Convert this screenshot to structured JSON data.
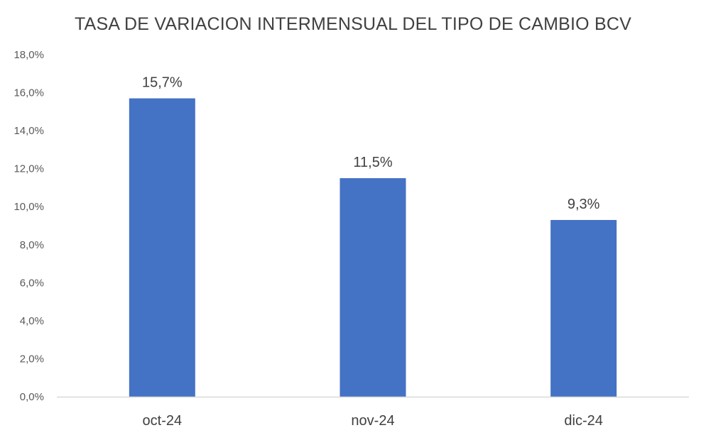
{
  "chart_data": {
    "type": "bar",
    "title": "TASA DE VARIACION INTERMENSUAL DEL TIPO DE CAMBIO BCV",
    "xlabel": "",
    "ylabel": "",
    "categories": [
      "oct-24",
      "nov-24",
      "dic-24"
    ],
    "values": [
      15.7,
      11.5,
      9.3
    ],
    "data_labels": [
      "15,7%",
      "11,5%",
      "9,3%"
    ],
    "ylim": [
      0,
      18
    ],
    "y_ticks": [
      0,
      2,
      4,
      6,
      8,
      10,
      12,
      14,
      16,
      18
    ],
    "y_tick_labels": [
      "0,0%",
      "2,0%",
      "4,0%",
      "6,0%",
      "8,0%",
      "10,0%",
      "12,0%",
      "14,0%",
      "16,0%",
      "18,0%"
    ],
    "grid": false,
    "legend": "none",
    "bar_color": "#4472C4",
    "axis_color": "#D9D9D9"
  }
}
